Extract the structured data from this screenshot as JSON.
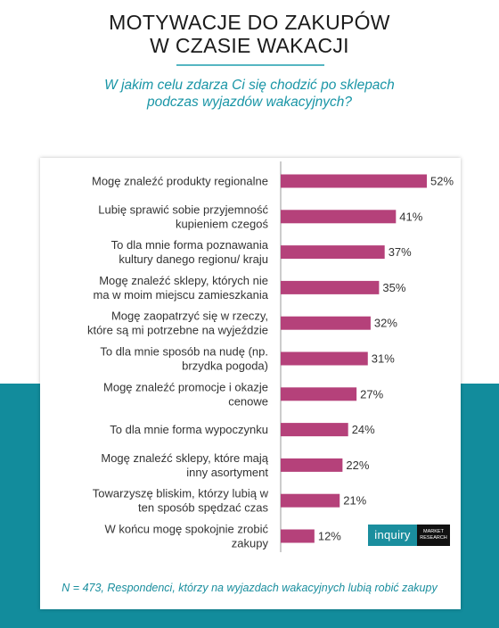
{
  "header": {
    "title_line1": "MOTYWACJE DO ZAKUPÓW",
    "title_line2": "W CZASIE WAKACJI",
    "question_line1": "W jakim celu zdarza Ci się chodzić po sklepach",
    "question_line2": "podczas wyjazdów wakacyjnych?"
  },
  "colors": {
    "bar": "#b5417a",
    "teal": "#128c9c",
    "accent_text": "#1995a6"
  },
  "chart_data": {
    "type": "bar",
    "orientation": "horizontal",
    "categories": [
      [
        "Mogę znaleźć produkty regionalne"
      ],
      [
        "Lubię sprawić sobie przyjemność",
        "kupieniem czegoś"
      ],
      [
        "To dla mnie forma poznawania",
        "kultury danego regionu/ kraju"
      ],
      [
        "Mogę znaleźć sklepy, których nie",
        "ma w moim miejscu zamieszkania"
      ],
      [
        "Mogę zaopatrzyć się w rzeczy,",
        "które są mi potrzebne na wyjeździe"
      ],
      [
        "To dla mnie sposób na nudę (np.",
        "brzydka pogoda)"
      ],
      [
        "Mogę znaleźć promocje i okazje",
        "cenowe"
      ],
      [
        "To dla mnie forma wypoczynku"
      ],
      [
        "Mogę znaleźć sklepy, które mają",
        "inny asortyment"
      ],
      [
        "Towarzyszę bliskim, którzy lubią w",
        "ten sposób spędzać czas"
      ],
      [
        "W końcu mogę spokojnie zrobić",
        "zakupy"
      ]
    ],
    "values": [
      52,
      41,
      37,
      35,
      32,
      31,
      27,
      24,
      22,
      21,
      12
    ],
    "value_labels": [
      "52%",
      "41%",
      "37%",
      "35%",
      "32%",
      "31%",
      "27%",
      "24%",
      "22%",
      "21%",
      "12%"
    ],
    "xlim": [
      0,
      52
    ],
    "grid": false,
    "legend": "none"
  },
  "logo": {
    "name": "inquiry",
    "tag_line1": "MARKET",
    "tag_line2": "RESEARCH"
  },
  "footnote": "N = 473, Respondenci, którzy na wyjazdach wakacyjnych lubią robić zakupy"
}
